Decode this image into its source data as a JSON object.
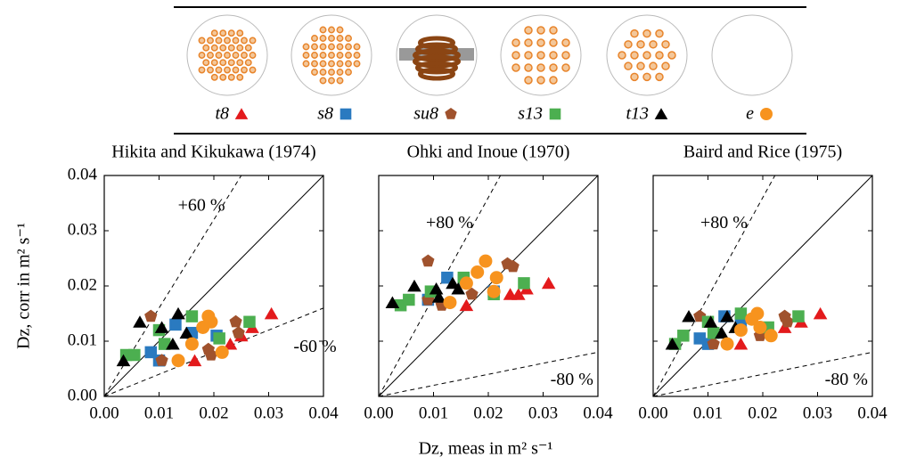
{
  "legend": [
    {
      "name": "t8",
      "color": "#e31a1c",
      "marker": "triangle"
    },
    {
      "name": "s8",
      "color": "#2a7ac0",
      "marker": "square"
    },
    {
      "name": "su8",
      "color": "#a0522d",
      "marker": "pentagon"
    },
    {
      "name": "s13",
      "color": "#4caf50",
      "marker": "square"
    },
    {
      "name": "t13",
      "color": "#000000",
      "marker": "triangle"
    },
    {
      "name": "e",
      "color": "#f7931e",
      "marker": "circle"
    }
  ],
  "xlabel": "Dz, meas in m² s⁻¹",
  "ylabel": "Dz, corr in m² s⁻¹",
  "chart_data": [
    {
      "type": "scatter",
      "title": "Hikita and Kikukawa (1974)",
      "deviation_percent": 60,
      "annotations": [
        "+60 %",
        "-60 %"
      ],
      "xlim": [
        0,
        0.04
      ],
      "ylim": [
        0,
        0.04
      ],
      "xticks": [
        {
          "value": 0,
          "label": "0.00"
        },
        {
          "value": 0.01,
          "label": "0.01"
        },
        {
          "value": 0.02,
          "label": "0.02"
        },
        {
          "value": 0.03,
          "label": "0.03"
        },
        {
          "value": 0.04,
          "label": "0.04"
        }
      ],
      "yticks": [
        {
          "value": 0,
          "label": "0.00"
        },
        {
          "value": 0.01,
          "label": "0.01"
        },
        {
          "value": 0.02,
          "label": "0.02"
        },
        {
          "value": 0.03,
          "label": "0.03"
        },
        {
          "value": 0.04,
          "label": "0.04"
        }
      ],
      "series": [
        {
          "x": [
            0.0165,
            0.023,
            0.025,
            0.027,
            0.0305
          ],
          "values": [
            0.0065,
            0.0095,
            0.011,
            0.0125,
            0.015
          ]
        },
        {
          "x": [
            0.0085,
            0.01,
            0.013,
            0.016,
            0.0205
          ],
          "values": [
            0.008,
            0.0065,
            0.013,
            0.0115,
            0.011
          ]
        },
        {
          "x": [
            0.0085,
            0.0105,
            0.019,
            0.024,
            0.0245,
            0.0195
          ],
          "values": [
            0.0145,
            0.0065,
            0.0085,
            0.0135,
            0.0115,
            0.0075
          ]
        },
        {
          "x": [
            0.004,
            0.0055,
            0.01,
            0.011,
            0.016,
            0.021,
            0.0265
          ],
          "values": [
            0.0075,
            0.0075,
            0.012,
            0.0095,
            0.0145,
            0.0105,
            0.0135
          ]
        },
        {
          "x": [
            0.0035,
            0.0065,
            0.0105,
            0.0135,
            0.015,
            0.0125
          ],
          "values": [
            0.0065,
            0.0135,
            0.0125,
            0.015,
            0.0115,
            0.0095
          ]
        },
        {
          "x": [
            0.0135,
            0.016,
            0.018,
            0.019,
            0.0195,
            0.0215
          ],
          "values": [
            0.0065,
            0.0095,
            0.0125,
            0.0145,
            0.0135,
            0.008
          ]
        }
      ]
    },
    {
      "type": "scatter",
      "title": "Ohki and Inoue (1970)",
      "deviation_percent": 80,
      "annotations": [
        "+80 %",
        "-80 %"
      ],
      "xlim": [
        0,
        0.04
      ],
      "ylim": [
        0,
        0.04
      ],
      "xticks": [
        {
          "value": 0,
          "label": "0.00"
        },
        {
          "value": 0.01,
          "label": "0.01"
        },
        {
          "value": 0.02,
          "label": "0.02"
        },
        {
          "value": 0.03,
          "label": "0.03"
        },
        {
          "value": 0.04,
          "label": "0.04"
        }
      ],
      "yticks": [
        0,
        0.01,
        0.02,
        0.03,
        0.04
      ],
      "series": [
        {
          "x": [
            0.016,
            0.024,
            0.027,
            0.031,
            0.0255
          ],
          "values": [
            0.0165,
            0.0185,
            0.0195,
            0.0205,
            0.0185
          ]
        },
        {
          "x": [
            0.009,
            0.0125,
            0.0155,
            0.021
          ],
          "values": [
            0.0175,
            0.0215,
            0.021,
            0.019
          ]
        },
        {
          "x": [
            0.009,
            0.009,
            0.0115,
            0.017,
            0.0235,
            0.0245
          ],
          "values": [
            0.0175,
            0.0245,
            0.0165,
            0.0185,
            0.024,
            0.0235
          ]
        },
        {
          "x": [
            0.004,
            0.0055,
            0.0095,
            0.0155,
            0.021,
            0.0265
          ],
          "values": [
            0.0165,
            0.0175,
            0.019,
            0.0215,
            0.0185,
            0.0205
          ]
        },
        {
          "x": [
            0.0025,
            0.0065,
            0.0105,
            0.0135,
            0.0145,
            0.011
          ],
          "values": [
            0.017,
            0.02,
            0.0195,
            0.0205,
            0.0195,
            0.018
          ]
        },
        {
          "x": [
            0.013,
            0.016,
            0.018,
            0.0195,
            0.021,
            0.0215
          ],
          "values": [
            0.017,
            0.0205,
            0.0225,
            0.0245,
            0.019,
            0.0215
          ]
        }
      ]
    },
    {
      "type": "scatter",
      "title": "Baird and Rice (1975)",
      "deviation_percent": 80,
      "annotations": [
        "+80 %",
        "-80 %"
      ],
      "xlim": [
        0,
        0.04
      ],
      "ylim": [
        0,
        0.04
      ],
      "xticks": [
        {
          "value": 0,
          "label": "0.00"
        },
        {
          "value": 0.01,
          "label": "0.01"
        },
        {
          "value": 0.02,
          "label": "0.02"
        },
        {
          "value": 0.03,
          "label": "0.03"
        },
        {
          "value": 0.04,
          "label": "0.04"
        }
      ],
      "yticks": [
        0,
        0.01,
        0.02,
        0.03,
        0.04
      ],
      "series": [
        {
          "x": [
            0.016,
            0.024,
            0.027,
            0.0305
          ],
          "values": [
            0.0095,
            0.0125,
            0.0135,
            0.015
          ]
        },
        {
          "x": [
            0.0085,
            0.01,
            0.013,
            0.016
          ],
          "values": [
            0.0105,
            0.0095,
            0.0145,
            0.0135
          ]
        },
        {
          "x": [
            0.0085,
            0.011,
            0.0195,
            0.024,
            0.0245
          ],
          "values": [
            0.0145,
            0.0095,
            0.011,
            0.0145,
            0.0135
          ]
        },
        {
          "x": [
            0.004,
            0.0055,
            0.01,
            0.011,
            0.016,
            0.021,
            0.0265
          ],
          "values": [
            0.0095,
            0.011,
            0.0135,
            0.0115,
            0.015,
            0.0125,
            0.0145
          ]
        },
        {
          "x": [
            0.0035,
            0.0065,
            0.0105,
            0.0135,
            0.015,
            0.0125
          ],
          "values": [
            0.0095,
            0.0145,
            0.0135,
            0.0145,
            0.0125,
            0.0115
          ]
        },
        {
          "x": [
            0.0135,
            0.016,
            0.018,
            0.019,
            0.0215,
            0.0195
          ],
          "values": [
            0.0095,
            0.012,
            0.014,
            0.015,
            0.011,
            0.0125
          ]
        }
      ]
    }
  ]
}
